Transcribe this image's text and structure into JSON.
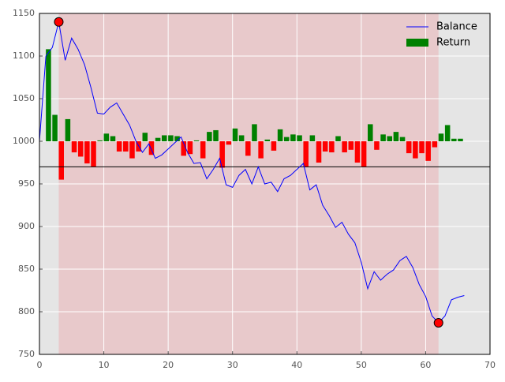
{
  "chart_data": {
    "type": "line_bar",
    "xlim": [
      0,
      70
    ],
    "xticks": [
      0,
      10,
      20,
      30,
      40,
      50,
      60,
      70
    ],
    "ylim": [
      750,
      1150
    ],
    "yticks": [
      750,
      800,
      850,
      900,
      950,
      1000,
      1050,
      1100,
      1150
    ],
    "grid": true,
    "legend": "upper right",
    "bar_base": 1000,
    "hline": 970,
    "shade_span": [
      3,
      62
    ],
    "markers": {
      "color": "#ff0000",
      "x": [
        3,
        62
      ],
      "values": [
        1140,
        787
      ]
    },
    "series": [
      {
        "name": "Balance",
        "type": "line",
        "color": "#0000ff",
        "x": [
          0,
          1,
          2,
          3,
          4,
          5,
          6,
          7,
          8,
          9,
          10,
          11,
          12,
          13,
          14,
          15,
          16,
          17,
          18,
          19,
          20,
          21,
          22,
          23,
          24,
          25,
          26,
          27,
          28,
          29,
          30,
          31,
          32,
          33,
          34,
          35,
          36,
          37,
          38,
          39,
          40,
          41,
          42,
          43,
          44,
          45,
          46,
          47,
          48,
          49,
          50,
          51,
          52,
          53,
          54,
          55,
          56,
          57,
          58,
          59,
          60,
          61,
          62,
          63,
          64,
          65,
          66
        ],
        "values": [
          1000,
          1100,
          1110,
          1140,
          1095,
          1121,
          1108,
          1090,
          1063,
          1033,
          1032,
          1040,
          1045,
          1032,
          1019,
          1000,
          987,
          997,
          980,
          984,
          991,
          998,
          1005,
          987,
          974,
          975,
          956,
          967,
          980,
          949,
          946,
          960,
          967,
          950,
          970,
          950,
          952,
          941,
          956,
          960,
          967,
          974,
          943,
          949,
          925,
          913,
          899,
          905,
          891,
          881,
          858,
          827,
          847,
          837,
          844,
          849,
          860,
          865,
          852,
          832,
          818,
          795,
          787,
          795,
          814,
          817,
          819
        ]
      },
      {
        "name": "Return",
        "type": "bar",
        "color": "#008000",
        "color_negative": "#ff0000",
        "x": [
          1,
          2,
          3,
          4,
          5,
          6,
          7,
          8,
          9,
          10,
          11,
          12,
          13,
          14,
          15,
          16,
          17,
          18,
          19,
          20,
          21,
          22,
          23,
          24,
          25,
          26,
          27,
          28,
          29,
          30,
          31,
          32,
          33,
          34,
          35,
          36,
          37,
          38,
          39,
          40,
          41,
          42,
          43,
          44,
          45,
          46,
          47,
          48,
          49,
          50,
          51,
          52,
          53,
          54,
          55,
          56,
          57,
          58,
          59,
          60,
          61,
          62,
          63,
          64,
          65
        ],
        "values": [
          108,
          31,
          -45,
          26,
          -13,
          -18,
          -26,
          -30,
          1,
          9,
          6,
          -12,
          -12,
          -20,
          -12,
          10,
          -16,
          4,
          7,
          7,
          6,
          -17,
          -15,
          1,
          -20,
          11,
          13,
          -31,
          -4,
          15,
          7,
          -17,
          20,
          -20,
          2,
          -11,
          14,
          5,
          8,
          7,
          -30,
          7,
          -25,
          -12,
          -13,
          6,
          -13,
          -10,
          -25,
          -30,
          20,
          -10,
          8,
          6,
          11,
          5,
          -14,
          -20,
          -14,
          -23,
          -7,
          9,
          19,
          3,
          3
        ]
      }
    ]
  }
}
